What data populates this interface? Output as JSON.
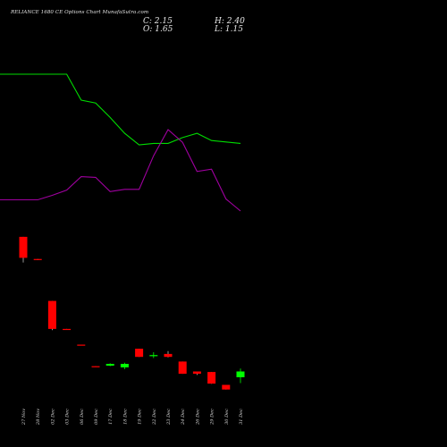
{
  "header": {
    "title": "RELIANCE 1680  CE Options  Chart MunafaSutra.com",
    "close_label": "C:",
    "close_value": "2.15",
    "open_label": "O:",
    "open_value": "1.65",
    "high_label": "H:",
    "high_value": "2.40",
    "low_label": "L:",
    "low_value": "1.15"
  },
  "colors": {
    "background": "#000000",
    "up_candle": "#00ff00",
    "down_candle": "#ff0000",
    "green_line": "#00dd00",
    "purple_line": "#a000a0",
    "text": "#e6e6e6"
  },
  "chart_data": {
    "type": "candlestick",
    "categories": [
      "27 Nov",
      "28 Nov",
      "02 Dec",
      "03 Dec",
      "06 Dec",
      "09 Dec",
      "17 Dec",
      "18 Dec",
      "19 Dec",
      "22 Dec",
      "23 Dec",
      "24 Dec",
      "26 Dec",
      "29 Dec",
      "30 Dec",
      "31 Dec"
    ],
    "ohlc": [
      {
        "o": 13.7,
        "h": 13.7,
        "l": 11.5,
        "c": 11.9
      },
      {
        "o": 11.8,
        "h": 11.8,
        "l": 11.7,
        "c": 11.75
      },
      {
        "o": 8.2,
        "h": 8.2,
        "l": 5.7,
        "c": 5.8
      },
      {
        "o": 5.8,
        "h": 5.8,
        "l": 5.75,
        "c": 5.75
      },
      {
        "o": 4.45,
        "h": 4.45,
        "l": 4.4,
        "c": 4.4
      },
      {
        "o": 2.6,
        "h": 2.6,
        "l": 2.55,
        "c": 2.55
      },
      {
        "o": 2.65,
        "h": 2.85,
        "l": 2.6,
        "c": 2.8
      },
      {
        "o": 2.5,
        "h": 2.9,
        "l": 2.35,
        "c": 2.8
      },
      {
        "o": 4.1,
        "h": 4.1,
        "l": 3.4,
        "c": 3.4
      },
      {
        "o": 3.55,
        "h": 3.8,
        "l": 3.3,
        "c": 3.55
      },
      {
        "o": 3.65,
        "h": 3.9,
        "l": 3.35,
        "c": 3.4
      },
      {
        "o": 3.0,
        "h": 3.0,
        "l": 1.95,
        "c": 1.95
      },
      {
        "o": 2.15,
        "h": 2.15,
        "l": 1.85,
        "c": 1.95
      },
      {
        "o": 2.1,
        "h": 2.1,
        "l": 1.1,
        "c": 1.1
      },
      {
        "o": 1.0,
        "h": 1.0,
        "l": 0.6,
        "c": 0.6
      },
      {
        "o": 1.65,
        "h": 2.4,
        "l": 1.15,
        "c": 2.15
      }
    ],
    "green_line": [
      105.9,
      105.9,
      105.9,
      105.9,
      104.1,
      103.9,
      102.9,
      101.8,
      101.0,
      101.1,
      101.1,
      101.5,
      101.8,
      101.3,
      101.2,
      101.1
    ],
    "purple_line": [
      2.0,
      2.0,
      2.6,
      3.3,
      5.1,
      5.0,
      3.1,
      3.4,
      3.4,
      7.9,
      11.4,
      9.7,
      5.8,
      6.1,
      2.1,
      0.5
    ],
    "overlay_lines_scale": "separate",
    "ylim": [
      0,
      30
    ],
    "grid": false
  }
}
